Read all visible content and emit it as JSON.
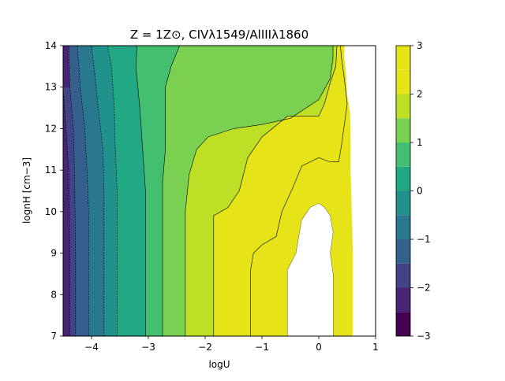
{
  "chart_data": {
    "type": "contour",
    "title": "Z = 1Z⊙, CIVλ1549/AlIIIλ1860",
    "xlabel": "logU",
    "ylabel": "lognH [cm−3]",
    "xlim": [
      -4.5,
      1
    ],
    "ylim": [
      7,
      14
    ],
    "x_ticks": [
      -4,
      -3,
      -2,
      -1,
      0,
      1
    ],
    "y_ticks": [
      7,
      8,
      9,
      10,
      11,
      12,
      13,
      14
    ],
    "grid": false,
    "colorbar": {
      "ticks": [
        -3,
        -2,
        -1,
        0,
        1,
        2,
        3
      ],
      "levels": [
        -3,
        -2.5,
        -2,
        -1.5,
        -1,
        -0.5,
        0,
        0.5,
        1,
        1.5,
        2,
        2.5,
        3
      ],
      "colors": [
        "#440154",
        "#482475",
        "#414487",
        "#355f8d",
        "#2a788e",
        "#21918c",
        "#22a884",
        "#44bf70",
        "#7ad151",
        "#bddf26",
        "#e6e419"
      ]
    },
    "contours": [
      {
        "level": -2.5,
        "points": [
          [
            -4.5,
            7
          ],
          [
            -4.38,
            7
          ],
          [
            -4.38,
            9
          ],
          [
            -4.4,
            11
          ],
          [
            -4.45,
            12
          ],
          [
            -4.5,
            13
          ]
        ]
      },
      {
        "level": -2.0,
        "points": [
          [
            -4.28,
            7
          ],
          [
            -4.28,
            9
          ],
          [
            -4.3,
            11
          ],
          [
            -4.32,
            12
          ],
          [
            -4.38,
            13
          ],
          [
            -4.4,
            14
          ]
        ]
      },
      {
        "level": -1.5,
        "points": [
          [
            -4.05,
            7
          ],
          [
            -4.05,
            9
          ],
          [
            -4.05,
            10
          ],
          [
            -4.08,
            11
          ],
          [
            -4.12,
            12
          ],
          [
            -4.2,
            13
          ],
          [
            -4.25,
            14
          ]
        ]
      },
      {
        "level": -1.0,
        "points": [
          [
            -3.78,
            7
          ],
          [
            -3.78,
            9
          ],
          [
            -3.78,
            10.5
          ],
          [
            -3.8,
            11.5
          ],
          [
            -3.88,
            12.5
          ],
          [
            -3.95,
            13.4
          ],
          [
            -4.0,
            14
          ]
        ]
      },
      {
        "level": -0.5,
        "points": [
          [
            -3.55,
            7
          ],
          [
            -3.55,
            9
          ],
          [
            -3.55,
            10.5
          ],
          [
            -3.58,
            11.5
          ],
          [
            -3.6,
            12.5
          ],
          [
            -3.65,
            13.5
          ],
          [
            -3.72,
            14
          ]
        ]
      },
      {
        "level": 0.0,
        "points": [
          [
            -3.05,
            7
          ],
          [
            -3.05,
            9
          ],
          [
            -3.05,
            10.5
          ],
          [
            -3.1,
            11.5
          ],
          [
            -3.15,
            12.5
          ],
          [
            -3.22,
            13.5
          ],
          [
            -3.2,
            14
          ]
        ]
      },
      {
        "level": 0.5,
        "points": [
          [
            -2.75,
            7
          ],
          [
            -2.75,
            9
          ],
          [
            -2.75,
            10.7
          ],
          [
            -2.7,
            11.5
          ],
          [
            -2.7,
            12.3
          ],
          [
            -2.7,
            13
          ],
          [
            -2.6,
            13.5
          ],
          [
            -2.45,
            14
          ]
        ]
      },
      {
        "level": 1.0,
        "points": [
          [
            -2.35,
            7
          ],
          [
            -2.35,
            9
          ],
          [
            -2.35,
            10
          ],
          [
            -2.28,
            10.9
          ],
          [
            -2.15,
            11.5
          ],
          [
            -1.95,
            11.8
          ],
          [
            -1.5,
            12
          ],
          [
            -1.0,
            12.1
          ],
          [
            -0.5,
            12.25
          ],
          [
            0,
            12.7
          ],
          [
            0.2,
            13.2
          ],
          [
            0.25,
            13.7
          ],
          [
            0.25,
            14
          ]
        ]
      },
      {
        "level": 1.5,
        "points": [
          [
            -1.85,
            7
          ],
          [
            -1.85,
            9
          ],
          [
            -1.85,
            9.9
          ],
          [
            -1.6,
            10.1
          ],
          [
            -1.4,
            10.5
          ],
          [
            -1.25,
            11.3
          ],
          [
            -1.0,
            11.8
          ],
          [
            -0.55,
            12.3
          ],
          [
            -0.35,
            12.3
          ],
          [
            0.0,
            12.3
          ],
          [
            0.1,
            12.6
          ],
          [
            0.2,
            13.1
          ],
          [
            0.3,
            13.5
          ],
          [
            0.32,
            14
          ]
        ]
      },
      {
        "level": 2.0,
        "points": [
          [
            -1.2,
            7
          ],
          [
            -1.2,
            8.6
          ],
          [
            -1.15,
            9
          ],
          [
            -1.0,
            9.2
          ],
          [
            -0.75,
            9.4
          ],
          [
            -0.65,
            10
          ],
          [
            -0.45,
            10.6
          ],
          [
            -0.3,
            11.1
          ],
          [
            0.0,
            11.3
          ],
          [
            0.2,
            11.2
          ],
          [
            0.35,
            11.2
          ],
          [
            0.4,
            11.6
          ],
          [
            0.45,
            12.1
          ],
          [
            0.5,
            12.6
          ],
          [
            0.45,
            13.2
          ],
          [
            0.4,
            13.7
          ],
          [
            0.38,
            14
          ]
        ]
      },
      {
        "level": 2.5,
        "points": [
          [
            -0.55,
            7
          ],
          [
            -0.55,
            8.6
          ],
          [
            -0.4,
            9
          ],
          [
            -0.35,
            9.4
          ],
          [
            -0.3,
            9.8
          ],
          [
            -0.15,
            10.1
          ],
          [
            0.0,
            10.2
          ],
          [
            0.1,
            10.1
          ],
          [
            0.2,
            9.9
          ],
          [
            0.25,
            9.5
          ],
          [
            0.2,
            9
          ],
          [
            0.25,
            8.5
          ],
          [
            0.25,
            8
          ],
          [
            0.25,
            7
          ]
        ]
      }
    ],
    "white_regions": [
      {
        "name": "no-data-inner",
        "points": [
          [
            -0.55,
            7
          ],
          [
            -0.55,
            8.6
          ],
          [
            -0.4,
            9
          ],
          [
            -0.35,
            9.4
          ],
          [
            -0.3,
            9.8
          ],
          [
            -0.15,
            10.1
          ],
          [
            0.0,
            10.2
          ],
          [
            0.1,
            10.1
          ],
          [
            0.2,
            9.9
          ],
          [
            0.25,
            9.5
          ],
          [
            0.2,
            9
          ],
          [
            0.25,
            8.5
          ],
          [
            0.25,
            7
          ]
        ]
      },
      {
        "name": "no-data-edge",
        "points": [
          [
            0.6,
            7
          ],
          [
            0.6,
            8
          ],
          [
            0.6,
            9
          ],
          [
            0.58,
            10
          ],
          [
            0.56,
            11
          ],
          [
            0.56,
            12
          ],
          [
            0.55,
            12.4
          ],
          [
            0.5,
            12.8
          ],
          [
            0.48,
            13.3
          ],
          [
            0.45,
            13.7
          ],
          [
            0.45,
            14
          ],
          [
            1,
            14
          ],
          [
            1,
            7
          ]
        ]
      }
    ]
  }
}
